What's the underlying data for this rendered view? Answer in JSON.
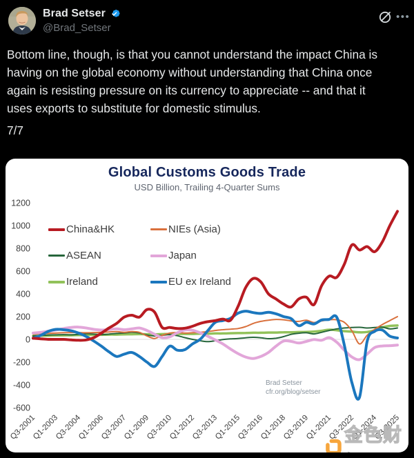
{
  "header": {
    "display_name": "Brad Setser",
    "handle": "@Brad_Setser",
    "more_label": "•••"
  },
  "tweet": {
    "lines": [
      "Bottom line, though, is that you cannot understand the impact China is",
      "having on the global economy without understanding that China once",
      "again is resisting pressure on its currency to appreciate -- and that it",
      "uses exports to substitute for domestic stimulus."
    ],
    "thread_position": "7/7"
  },
  "chart_data": {
    "type": "line",
    "title": "Global Customs Goods Trade",
    "subtitle": "USD Billion, Trailing 4-Quarter Sums",
    "xlabel": "",
    "ylabel": "",
    "x_description": "Quarters from Q3-2001 to Q3-2025, sampled every 2 quarters (49 points per series)",
    "x_tick_labels": [
      "Q3-2001",
      "Q1-2003",
      "Q3-2004",
      "Q1-2006",
      "Q3-2007",
      "Q1-2009",
      "Q3-2010",
      "Q1-2012",
      "Q3-2013",
      "Q1-2015",
      "Q3-2016",
      "Q1-2018",
      "Q3-2019",
      "Q1-2021",
      "Q3-2022",
      "Q1-2024",
      "Q3-2025"
    ],
    "y_ticks": [
      1200,
      1000,
      800,
      600,
      400,
      200,
      0,
      -200,
      -400,
      -600
    ],
    "ylim": [
      -600,
      1200
    ],
    "grid": "zero-line-only",
    "legend_position": "upper-left-inside",
    "legend": [
      {
        "label": "China&HK",
        "color": "#b81b22",
        "thick": true
      },
      {
        "label": "NIEs (Asia)",
        "color": "#d9703c",
        "thick": false
      },
      {
        "label": "ASEAN",
        "color": "#26663b",
        "thick": false
      },
      {
        "label": "Japan",
        "color": "#e2a6d9",
        "thick": true
      },
      {
        "label": "Ireland",
        "color": "#92c25a",
        "thick": true
      },
      {
        "label": "EU ex Ireland",
        "color": "#1b77be",
        "thick": true
      }
    ],
    "series": [
      {
        "name": "Ireland",
        "color": "#92c25a",
        "width": 3.5,
        "values": [
          30,
          32,
          33,
          35,
          35,
          36,
          38,
          38,
          40,
          40,
          42,
          42,
          44,
          45,
          46,
          45,
          44,
          46,
          48,
          48,
          48,
          48,
          50,
          50,
          52,
          52,
          54,
          55,
          56,
          58,
          58,
          60,
          60,
          62,
          62,
          64,
          65,
          68,
          75,
          85,
          80,
          72,
          68,
          62,
          65,
          80,
          105,
          118,
          122
        ]
      },
      {
        "name": "ASEAN",
        "color": "#26663b",
        "width": 2,
        "values": [
          30,
          34,
          38,
          40,
          42,
          40,
          44,
          50,
          46,
          42,
          46,
          52,
          56,
          62,
          56,
          38,
          30,
          36,
          42,
          32,
          15,
          0,
          -12,
          -20,
          -12,
          -2,
          4,
          8,
          14,
          18,
          14,
          6,
          10,
          24,
          44,
          54,
          58,
          48,
          62,
          78,
          92,
          100,
          104,
          106,
          100,
          104,
          108,
          92,
          100
        ]
      },
      {
        "name": "NIEs (Asia)",
        "color": "#d9703c",
        "width": 2,
        "values": [
          45,
          50,
          52,
          55,
          58,
          60,
          60,
          58,
          60,
          62,
          65,
          68,
          62,
          68,
          62,
          30,
          8,
          35,
          55,
          60,
          55,
          58,
          62,
          68,
          78,
          85,
          90,
          95,
          112,
          140,
          158,
          168,
          175,
          172,
          162,
          158,
          168,
          148,
          162,
          172,
          172,
          150,
          75,
          -40,
          35,
          88,
          130,
          165,
          200
        ]
      },
      {
        "name": "Japan",
        "color": "#e2a6d9",
        "width": 4,
        "values": [
          55,
          62,
          72,
          82,
          95,
          105,
          108,
          100,
          88,
          82,
          86,
          92,
          85,
          92,
          100,
          78,
          45,
          15,
          22,
          58,
          82,
          80,
          58,
          28,
          -5,
          -40,
          -85,
          -125,
          -155,
          -168,
          -150,
          -115,
          -60,
          -15,
          -18,
          -32,
          -18,
          -2,
          -8,
          15,
          -25,
          -95,
          -155,
          -178,
          -130,
          -72,
          -58,
          -55,
          -50
        ]
      },
      {
        "name": "EU ex Ireland",
        "color": "#1b77be",
        "width": 4,
        "values": [
          10,
          35,
          70,
          88,
          85,
          75,
          55,
          25,
          -15,
          -60,
          -110,
          -150,
          -130,
          -115,
          -150,
          -200,
          -238,
          -150,
          -60,
          -95,
          -90,
          -40,
          0,
          75,
          150,
          165,
          185,
          230,
          248,
          235,
          228,
          238,
          225,
          200,
          182,
          120,
          150,
          135,
          170,
          175,
          195,
          -50,
          -380,
          -510,
          -20,
          70,
          82,
          28,
          12
        ]
      },
      {
        "name": "China&HK",
        "color": "#b81b22",
        "width": 4,
        "values": [
          10,
          5,
          0,
          0,
          0,
          -5,
          -8,
          -5,
          15,
          55,
          100,
          140,
          195,
          212,
          196,
          262,
          240,
          105,
          105,
          95,
          98,
          115,
          140,
          155,
          165,
          178,
          168,
          290,
          455,
          535,
          505,
          400,
          355,
          310,
          285,
          355,
          370,
          305,
          470,
          555,
          545,
          660,
          830,
          785,
          815,
          770,
          855,
          1000,
          1125
        ]
      }
    ],
    "annotation": {
      "line1": "Brad Setser",
      "line2": "cfr.org/blog/setser"
    },
    "watermark": {
      "text": "金色财经",
      "logo_color": "#f59a23"
    },
    "colors": {
      "title": "#16275c",
      "subtitle": "#5f6570",
      "axis_text": "#3d3d3d",
      "zero_line": "#dcdcdc",
      "background": "#ffffff"
    }
  }
}
